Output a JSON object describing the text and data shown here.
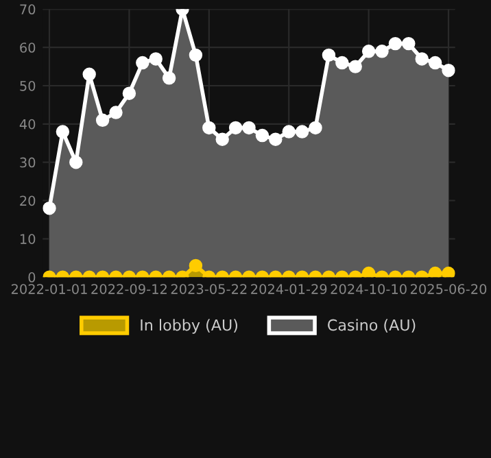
{
  "chart_data": {
    "type": "area",
    "categories": [
      "2022-01-01",
      null,
      null,
      null,
      null,
      null,
      "2022-09-12",
      null,
      null,
      null,
      null,
      null,
      "2023-05-22",
      null,
      null,
      null,
      null,
      null,
      "2024-01-29",
      null,
      null,
      null,
      null,
      null,
      "2024-10-10",
      null,
      null,
      null,
      null,
      null,
      "2025-06-20"
    ],
    "series": [
      {
        "name": "In lobby (AU)",
        "color": "#ffcc00",
        "values": [
          0,
          0,
          0,
          0,
          0,
          0,
          0,
          0,
          0,
          0,
          0,
          3,
          0,
          0,
          0,
          0,
          0,
          0,
          0,
          0,
          0,
          0,
          0,
          0,
          1,
          0,
          0,
          0,
          0,
          1,
          1
        ]
      },
      {
        "name": "Casino (AU)",
        "color": "#ffffff",
        "values": [
          18,
          38,
          30,
          53,
          41,
          43,
          48,
          56,
          57,
          52,
          70,
          58,
          39,
          36,
          39,
          39,
          37,
          36,
          38,
          38,
          39,
          58,
          56,
          55,
          59,
          59,
          61,
          61,
          57,
          56,
          54
        ]
      }
    ],
    "ylim": [
      0,
      70
    ],
    "yticks": [
      0,
      10,
      20,
      30,
      40,
      50,
      60,
      70
    ],
    "grid": true,
    "legend": "bottom",
    "marker": "circle"
  }
}
